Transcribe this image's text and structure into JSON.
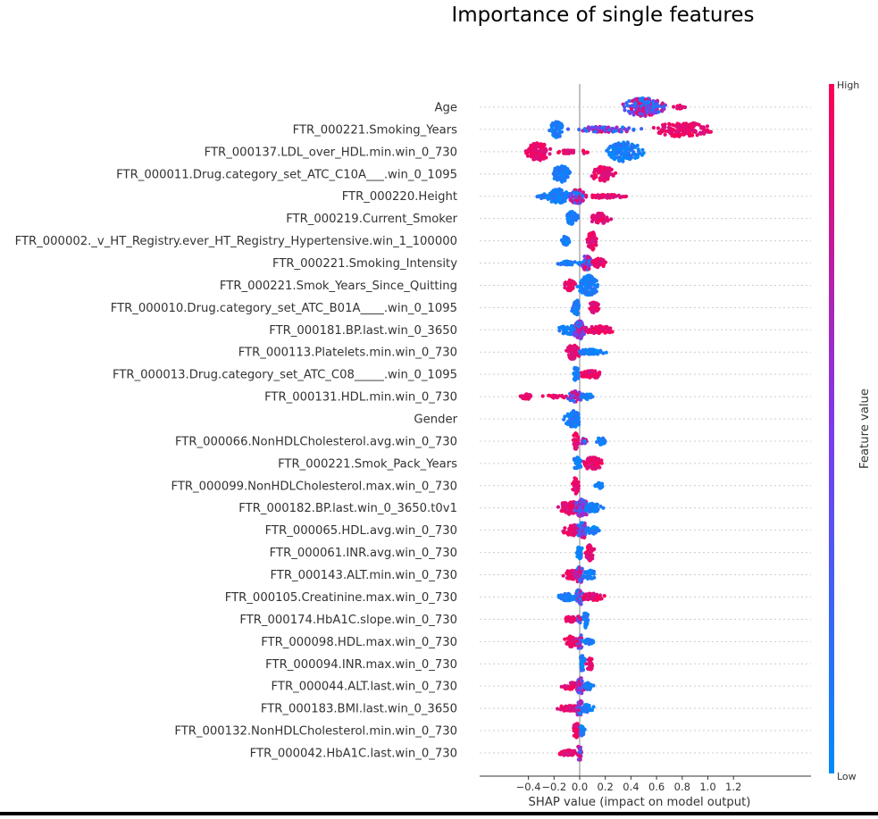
{
  "chart_data": {
    "type": "scatter",
    "title": "Importance of single features",
    "xlabel": "SHAP value (impact on model output)",
    "xlim": [
      -0.55,
      1.25
    ],
    "xticks": [
      "−0.4",
      "−0.2",
      "0.0",
      "0.2",
      "0.4",
      "0.6",
      "0.8",
      "1.0",
      "1.2"
    ],
    "xtick_values": [
      -0.4,
      -0.2,
      0.0,
      0.2,
      0.4,
      0.6,
      0.8,
      1.0,
      1.2
    ],
    "colorbar": {
      "label": "Feature value",
      "high": "High",
      "low": "Low",
      "low_color": "#008bfb",
      "mid_color": "#7c3aed",
      "high_color": "#ff0052"
    },
    "grid": true,
    "features": [
      {
        "name": "Age",
        "clusters": [
          {
            "lo": 0.3,
            "hi": 0.72,
            "c": 0.5,
            "h": 10,
            "n": 220,
            "col": "mix"
          },
          {
            "lo": 0.72,
            "hi": 0.83,
            "c": 0.78,
            "h": 2,
            "n": 12,
            "col": "high"
          }
        ]
      },
      {
        "name": "FTR_000221.Smoking_Years",
        "clusters": [
          {
            "lo": -0.26,
            "hi": -0.13,
            "c": -0.18,
            "h": 9,
            "n": 60,
            "col": "low"
          },
          {
            "lo": -0.12,
            "hi": 0.55,
            "c": 0.2,
            "h": 3,
            "n": 90,
            "col": "mix"
          },
          {
            "lo": 0.55,
            "hi": 1.17,
            "c": 0.8,
            "h": 8,
            "n": 150,
            "col": "high"
          }
        ]
      },
      {
        "name": "FTR_000137.LDL_over_HDL.min.win_0_730",
        "clusters": [
          {
            "lo": -0.46,
            "hi": -0.22,
            "c": -0.33,
            "h": 10,
            "n": 130,
            "col": "high"
          },
          {
            "lo": -0.22,
            "hi": 0.0,
            "c": -0.1,
            "h": 2,
            "n": 25,
            "col": "high"
          },
          {
            "lo": 0.0,
            "hi": 0.07,
            "c": 0.04,
            "h": 2,
            "n": 5,
            "col": "high"
          },
          {
            "lo": 0.18,
            "hi": 0.52,
            "c": 0.35,
            "h": 11,
            "n": 150,
            "col": "low"
          }
        ]
      },
      {
        "name": "FTR_000011.Drug.category_set_ATC_C10A___.win_0_1095",
        "clusters": [
          {
            "lo": -0.23,
            "hi": -0.05,
            "c": -0.14,
            "h": 9,
            "n": 80,
            "col": "low"
          },
          {
            "lo": 0.07,
            "hi": 0.31,
            "c": 0.18,
            "h": 8,
            "n": 80,
            "col": "high"
          }
        ]
      },
      {
        "name": "FTR_000220.Height",
        "clusters": [
          {
            "lo": -0.43,
            "hi": -0.22,
            "c": -0.25,
            "h": 3,
            "n": 30,
            "col": "low"
          },
          {
            "lo": -0.26,
            "hi": -0.05,
            "c": -0.17,
            "h": 8,
            "n": 90,
            "col": "low"
          },
          {
            "lo": -0.08,
            "hi": 0.1,
            "c": -0.02,
            "h": 8,
            "n": 70,
            "col": "mix"
          },
          {
            "lo": 0.05,
            "hi": 0.46,
            "c": 0.2,
            "h": 2,
            "n": 60,
            "col": "high"
          }
        ]
      },
      {
        "name": "FTR_000219.Current_Smoker",
        "clusters": [
          {
            "lo": -0.12,
            "hi": 0.0,
            "c": -0.06,
            "h": 8,
            "n": 50,
            "col": "low"
          },
          {
            "lo": 0.08,
            "hi": 0.27,
            "c": 0.16,
            "h": 6,
            "n": 60,
            "col": "high"
          }
        ]
      },
      {
        "name": "FTR_000002._v_HT_Registry.ever_HT_Registry_Hypertensive.win_1_100000",
        "clusters": [
          {
            "lo": -0.16,
            "hi": -0.06,
            "c": -0.11,
            "h": 5,
            "n": 35,
            "col": "low"
          },
          {
            "lo": 0.05,
            "hi": 0.15,
            "c": 0.1,
            "h": 10,
            "n": 55,
            "col": "high"
          }
        ]
      },
      {
        "name": "FTR_000221.Smoking_Intensity",
        "clusters": [
          {
            "lo": -0.23,
            "hi": 0.02,
            "c": -0.1,
            "h": 2,
            "n": 45,
            "col": "low"
          },
          {
            "lo": 0.0,
            "hi": 0.12,
            "c": 0.05,
            "h": 8,
            "n": 50,
            "col": "mix"
          },
          {
            "lo": 0.08,
            "hi": 0.22,
            "c": 0.15,
            "h": 5,
            "n": 45,
            "col": "high"
          }
        ]
      },
      {
        "name": "FTR_000221.Smok_Years_Since_Quitting",
        "clusters": [
          {
            "lo": -0.15,
            "hi": -0.03,
            "c": -0.08,
            "h": 6,
            "n": 45,
            "col": "high"
          },
          {
            "lo": -0.03,
            "hi": 0.18,
            "c": 0.07,
            "h": 11,
            "n": 120,
            "col": "low"
          }
        ]
      },
      {
        "name": "FTR_000010.Drug.category_set_ATC_B01A____.win_0_1095",
        "clusters": [
          {
            "lo": -0.07,
            "hi": 0.01,
            "c": -0.03,
            "h": 9,
            "n": 40,
            "col": "low"
          },
          {
            "lo": 0.06,
            "hi": 0.17,
            "c": 0.11,
            "h": 6,
            "n": 40,
            "col": "high"
          }
        ]
      },
      {
        "name": "FTR_000181.BP.last.win_0_3650",
        "clusters": [
          {
            "lo": -0.29,
            "hi": 0.0,
            "c": -0.06,
            "h": 5,
            "n": 70,
            "col": "low"
          },
          {
            "lo": -0.06,
            "hi": 0.08,
            "c": 0.0,
            "h": 10,
            "n": 90,
            "col": "mix"
          },
          {
            "lo": 0.05,
            "hi": 0.41,
            "c": 0.15,
            "h": 4,
            "n": 80,
            "col": "high"
          }
        ]
      },
      {
        "name": "FTR_000113.Platelets.min.win_0_730",
        "clusters": [
          {
            "lo": -0.12,
            "hi": 0.02,
            "c": -0.05,
            "h": 8,
            "n": 60,
            "col": "high"
          },
          {
            "lo": 0.0,
            "hi": 0.29,
            "c": 0.08,
            "h": 3,
            "n": 60,
            "col": "low"
          }
        ]
      },
      {
        "name": "FTR_000013.Drug.category_set_ATC_C08_____.win_0_1095",
        "clusters": [
          {
            "lo": -0.07,
            "hi": 0.0,
            "c": -0.03,
            "h": 8,
            "n": 35,
            "col": "low"
          },
          {
            "lo": 0.0,
            "hi": 0.25,
            "c": 0.1,
            "h": 4,
            "n": 60,
            "col": "high"
          }
        ]
      },
      {
        "name": "FTR_000131.HDL.min.win_0_730",
        "clusters": [
          {
            "lo": -0.48,
            "hi": -0.36,
            "c": -0.42,
            "h": 3,
            "n": 40,
            "col": "high"
          },
          {
            "lo": -0.36,
            "hi": -0.04,
            "c": -0.2,
            "h": 1.5,
            "n": 20,
            "col": "high"
          },
          {
            "lo": -0.1,
            "hi": 0.05,
            "c": -0.03,
            "h": 6,
            "n": 50,
            "col": "mix"
          },
          {
            "lo": 0.0,
            "hi": 0.15,
            "c": 0.05,
            "h": 3,
            "n": 30,
            "col": "low"
          }
        ]
      },
      {
        "name": "Gender",
        "clusters": [
          {
            "lo": -0.14,
            "hi": 0.03,
            "c": -0.05,
            "h": 9,
            "n": 70,
            "col": "low"
          }
        ]
      },
      {
        "name": "FTR_000066.NonHDLCholesterol.avg.win_0_730",
        "clusters": [
          {
            "lo": -0.06,
            "hi": 0.0,
            "c": -0.03,
            "h": 9,
            "n": 30,
            "col": "high"
          },
          {
            "lo": 0.0,
            "hi": 0.08,
            "c": 0.03,
            "h": 3,
            "n": 20,
            "col": "mix"
          },
          {
            "lo": 0.12,
            "hi": 0.22,
            "c": 0.17,
            "h": 4,
            "n": 30,
            "col": "low"
          }
        ]
      },
      {
        "name": "FTR_000221.Smok_Pack_Years",
        "clusters": [
          {
            "lo": -0.06,
            "hi": 0.02,
            "c": -0.02,
            "h": 8,
            "n": 35,
            "col": "low"
          },
          {
            "lo": 0.02,
            "hi": 0.22,
            "c": 0.1,
            "h": 7,
            "n": 70,
            "col": "high"
          }
        ]
      },
      {
        "name": "FTR_000099.NonHDLCholesterol.max.win_0_730",
        "clusters": [
          {
            "lo": -0.07,
            "hi": 0.0,
            "c": -0.03,
            "h": 9,
            "n": 30,
            "col": "high"
          },
          {
            "lo": 0.1,
            "hi": 0.2,
            "c": 0.15,
            "h": 3,
            "n": 25,
            "col": "low"
          }
        ]
      },
      {
        "name": "FTR_000182.BP.last.win_0_3650.t0v1",
        "clusters": [
          {
            "lo": -0.3,
            "hi": 0.0,
            "c": -0.06,
            "h": 7,
            "n": 90,
            "col": "high"
          },
          {
            "lo": -0.05,
            "hi": 0.1,
            "c": 0.02,
            "h": 10,
            "n": 80,
            "col": "mix"
          },
          {
            "lo": 0.05,
            "hi": 0.24,
            "c": 0.1,
            "h": 5,
            "n": 50,
            "col": "low"
          }
        ]
      },
      {
        "name": "FTR_000065.HDL.avg.win_0_730",
        "clusters": [
          {
            "lo": -0.2,
            "hi": 0.0,
            "c": -0.05,
            "h": 6,
            "n": 55,
            "col": "high"
          },
          {
            "lo": -0.04,
            "hi": 0.08,
            "c": 0.02,
            "h": 9,
            "n": 55,
            "col": "mix"
          },
          {
            "lo": 0.05,
            "hi": 0.19,
            "c": 0.1,
            "h": 4,
            "n": 40,
            "col": "low"
          }
        ]
      },
      {
        "name": "FTR_000061.INR.avg.win_0_730",
        "clusters": [
          {
            "lo": -0.03,
            "hi": 0.03,
            "c": 0.0,
            "h": 8,
            "n": 25,
            "col": "low"
          },
          {
            "lo": 0.04,
            "hi": 0.13,
            "c": 0.08,
            "h": 9,
            "n": 50,
            "col": "high"
          }
        ]
      },
      {
        "name": "FTR_000143.ALT.min.win_0_730",
        "clusters": [
          {
            "lo": -0.18,
            "hi": 0.0,
            "c": -0.06,
            "h": 5,
            "n": 50,
            "col": "high"
          },
          {
            "lo": -0.04,
            "hi": 0.06,
            "c": 0.0,
            "h": 9,
            "n": 45,
            "col": "mix"
          },
          {
            "lo": 0.04,
            "hi": 0.16,
            "c": 0.08,
            "h": 5,
            "n": 35,
            "col": "low"
          }
        ]
      },
      {
        "name": "FTR_000105.Creatinine.max.win_0_730",
        "clusters": [
          {
            "lo": -0.22,
            "hi": -0.02,
            "c": -0.1,
            "h": 4,
            "n": 50,
            "col": "low"
          },
          {
            "lo": -0.04,
            "hi": 0.05,
            "c": 0.0,
            "h": 9,
            "n": 40,
            "col": "mix"
          },
          {
            "lo": 0.03,
            "hi": 0.29,
            "c": 0.1,
            "h": 4,
            "n": 55,
            "col": "high"
          }
        ]
      },
      {
        "name": "FTR_000174.HbA1C.slope.win_0_730",
        "clusters": [
          {
            "lo": -0.16,
            "hi": -0.02,
            "c": -0.07,
            "h": 3,
            "n": 35,
            "col": "high"
          },
          {
            "lo": -0.03,
            "hi": 0.03,
            "c": 0.0,
            "h": 4,
            "n": 20,
            "col": "mix"
          },
          {
            "lo": 0.03,
            "hi": 0.08,
            "c": 0.05,
            "h": 10,
            "n": 30,
            "col": "low"
          }
        ]
      },
      {
        "name": "FTR_000098.HDL.max.win_0_730",
        "clusters": [
          {
            "lo": -0.15,
            "hi": -0.02,
            "c": -0.07,
            "h": 6,
            "n": 45,
            "col": "high"
          },
          {
            "lo": -0.03,
            "hi": 0.04,
            "c": 0.0,
            "h": 8,
            "n": 30,
            "col": "mix"
          },
          {
            "lo": 0.03,
            "hi": 0.14,
            "c": 0.07,
            "h": 3,
            "n": 30,
            "col": "low"
          }
        ]
      },
      {
        "name": "FTR_000094.INR.max.win_0_730",
        "clusters": [
          {
            "lo": -0.01,
            "hi": 0.05,
            "c": 0.02,
            "h": 9,
            "n": 25,
            "col": "low"
          },
          {
            "lo": 0.05,
            "hi": 0.12,
            "c": 0.08,
            "h": 7,
            "n": 30,
            "col": "high"
          }
        ]
      },
      {
        "name": "FTR_000044.ALT.last.win_0_730",
        "clusters": [
          {
            "lo": -0.2,
            "hi": -0.02,
            "c": -0.07,
            "h": 4,
            "n": 45,
            "col": "high"
          },
          {
            "lo": -0.03,
            "hi": 0.06,
            "c": 0.01,
            "h": 9,
            "n": 40,
            "col": "mix"
          },
          {
            "lo": 0.04,
            "hi": 0.13,
            "c": 0.07,
            "h": 4,
            "n": 30,
            "col": "low"
          }
        ]
      },
      {
        "name": "FTR_000183.BMI.last.win_0_3650",
        "clusters": [
          {
            "lo": -0.3,
            "hi": -0.02,
            "c": -0.08,
            "h": 3,
            "n": 55,
            "col": "high"
          },
          {
            "lo": -0.04,
            "hi": 0.04,
            "c": 0.0,
            "h": 9,
            "n": 35,
            "col": "mix"
          },
          {
            "lo": 0.02,
            "hi": 0.15,
            "c": 0.06,
            "h": 4,
            "n": 30,
            "col": "low"
          }
        ]
      },
      {
        "name": "FTR_000132.NonHDLCholesterol.min.win_0_730",
        "clusters": [
          {
            "lo": -0.07,
            "hi": 0.0,
            "c": -0.03,
            "h": 9,
            "n": 35,
            "col": "high"
          },
          {
            "lo": 0.0,
            "hi": 0.05,
            "c": 0.02,
            "h": 6,
            "n": 20,
            "col": "low"
          }
        ]
      },
      {
        "name": "FTR_000042.HbA1C.last.win_0_730",
        "clusters": [
          {
            "lo": -0.25,
            "hi": -0.02,
            "c": -0.08,
            "h": 3,
            "n": 45,
            "col": "high"
          },
          {
            "lo": -0.02,
            "hi": 0.03,
            "c": 0.0,
            "h": 9,
            "n": 25,
            "col": "mix"
          }
        ]
      }
    ]
  }
}
